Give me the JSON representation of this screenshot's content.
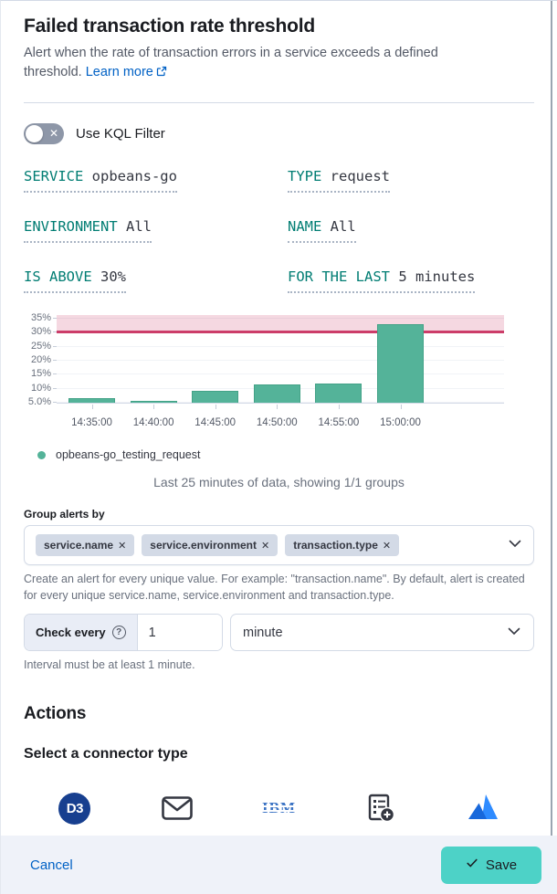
{
  "header": {
    "title": "Failed transaction rate threshold",
    "description": "Alert when the rate of transaction errors in a service exceeds a defined threshold.",
    "learn_more_label": "Learn more"
  },
  "kql_toggle": {
    "label": "Use KQL Filter",
    "state": "off"
  },
  "expressions": [
    {
      "label": "SERVICE",
      "value": "opbeans-go"
    },
    {
      "label": "TYPE",
      "value": "request"
    },
    {
      "label": "ENVIRONMENT",
      "value": "All"
    },
    {
      "label": "NAME",
      "value": "All"
    },
    {
      "label": "IS ABOVE",
      "value": "30%"
    },
    {
      "label": "FOR THE LAST",
      "value": "5 minutes"
    }
  ],
  "chart_data": {
    "type": "bar",
    "title": "",
    "xlabel": "",
    "ylabel": "",
    "categories": [
      "14:35:00",
      "14:40:00",
      "14:45:00",
      "14:50:00",
      "14:55:00",
      "15:00:00"
    ],
    "values": [
      6.0,
      5.2,
      8.5,
      11.0,
      11.3,
      32.3
    ],
    "series_name": "opbeans-go_testing_request",
    "y_ticks": [
      {
        "value": 35,
        "label": "35%"
      },
      {
        "value": 30,
        "label": "30%"
      },
      {
        "value": 25,
        "label": "25%"
      },
      {
        "value": 20,
        "label": "20%"
      },
      {
        "value": 15,
        "label": "15%"
      },
      {
        "value": 10,
        "label": "10%"
      },
      {
        "value": 5,
        "label": "5.0%"
      }
    ],
    "ylim": [
      4.4,
      36
    ],
    "threshold": 30,
    "threshold_color": "#CC3D69",
    "bar_color": "#54B399",
    "grid": true,
    "legend_position": "bottom-left"
  },
  "legend": {
    "label": "opbeans-go_testing_request",
    "color": "#54B399"
  },
  "chart_note": "Last 25 minutes of data, showing 1/1 groups",
  "group_alerts": {
    "label": "Group alerts by",
    "tags": [
      "service.name",
      "service.environment",
      "transaction.type"
    ],
    "remove_icon": "✕",
    "help": "Create an alert for every unique value. For example: \"transaction.name\". By default, alert is created for every unique service.name, service.environment and transaction.type."
  },
  "check_every": {
    "label": "Check every",
    "value": "1",
    "unit": "minute",
    "help": "Interval must be at least 1 minute."
  },
  "actions": {
    "title": "Actions",
    "subtitle": "Select a connector type",
    "connectors": [
      {
        "name": "D3 Security",
        "icon": "d3-logo",
        "logo_text": "D3"
      },
      {
        "name": "Email",
        "icon": "email-icon"
      },
      {
        "name": "IBM Resilient",
        "icon": "ibm-logo",
        "logo_text": "IBM"
      },
      {
        "name": "Index",
        "icon": "index-icon"
      },
      {
        "name": "Jira",
        "icon": "jira-logo"
      }
    ]
  },
  "footer": {
    "cancel_label": "Cancel",
    "save_label": "Save"
  },
  "colors": {
    "accent_teal": "#017D73",
    "link_blue": "#0061C5",
    "bar_green": "#54B399",
    "threshold_red": "#CC3D69",
    "save_teal": "#4DD2C7"
  }
}
